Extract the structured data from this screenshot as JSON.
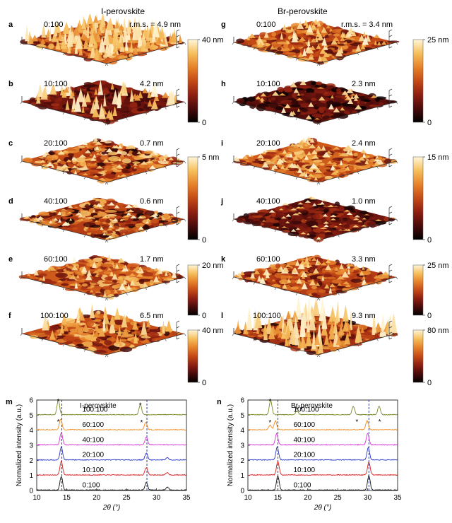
{
  "figure": {
    "columns": {
      "left_title": "I-perovskite",
      "right_title": "Br-perovskite"
    },
    "afm_panels": [
      {
        "letter": "a",
        "ratio": "0:100",
        "rms": "r.m.s. = 4.9 nm",
        "zmax": 40
      },
      {
        "letter": "b",
        "ratio": "10:100",
        "rms": "4.2 nm",
        "zmax": 40
      },
      {
        "letter": "c",
        "ratio": "20:100",
        "rms": "0.7 nm",
        "zmax": 5
      },
      {
        "letter": "d",
        "ratio": "40:100",
        "rms": "0.6 nm",
        "zmax": 5
      },
      {
        "letter": "e",
        "ratio": "60:100",
        "rms": "1.7 nm",
        "zmax": 20
      },
      {
        "letter": "f",
        "ratio": "100:100",
        "rms": "6.5 nm",
        "zmax": 40
      },
      {
        "letter": "g",
        "ratio": "0:100",
        "rms": "r.m.s. = 3.4 nm",
        "zmax": 25
      },
      {
        "letter": "h",
        "ratio": "10:100",
        "rms": "2.3 nm",
        "zmax": 25
      },
      {
        "letter": "i",
        "ratio": "20:100",
        "rms": "2.4 nm",
        "zmax": 15
      },
      {
        "letter": "j",
        "ratio": "40:100",
        "rms": "1.0 nm",
        "zmax": 15
      },
      {
        "letter": "k",
        "ratio": "60:100",
        "rms": "3.3 nm",
        "zmax": 25
      },
      {
        "letter": "l",
        "ratio": "100:100",
        "rms": "9.3 nm",
        "zmax": 80
      }
    ],
    "colorbars": [
      {
        "max_label": "40 nm",
        "min_label": "0"
      },
      {
        "max_label": "5 nm",
        "min_label": "0"
      },
      {
        "max_label": "20 nm",
        "min_label": "0"
      },
      {
        "max_label": "40 nm",
        "min_label": "0"
      },
      {
        "max_label": "25 nm",
        "min_label": "0"
      },
      {
        "max_label": "15 nm",
        "min_label": "0"
      },
      {
        "max_label": "25 nm",
        "min_label": "0"
      },
      {
        "max_label": "80 nm",
        "min_label": "0"
      }
    ],
    "colormap": [
      "#000000",
      "#4a0b0b",
      "#8e1f12",
      "#c44a16",
      "#e6822a",
      "#f6bf5c",
      "#fff6d8"
    ]
  },
  "chart_data": [
    {
      "type": "line",
      "panel": "m",
      "title": "I-perovskite",
      "xlabel": "2θ (°)",
      "ylabel": "Normalized intensity (a.u.)",
      "xlim": [
        10,
        35
      ],
      "ylim": [
        0,
        6
      ],
      "xticks": [
        "10",
        "15",
        "20",
        "25",
        "30",
        "35"
      ],
      "yticks": [
        "0",
        "1",
        "2",
        "3",
        "4",
        "5",
        "6"
      ],
      "dashed_lines_x": [
        14.2,
        28.4
      ],
      "series": [
        {
          "name": "0:100",
          "offset": 0,
          "color": "#111111",
          "peaks": [
            [
              14.1,
              0.9
            ],
            [
              28.3,
              0.5
            ],
            [
              31.8,
              0.2
            ]
          ]
        },
        {
          "name": "10:100",
          "offset": 1,
          "color": "#d42020",
          "peaks": [
            [
              14.1,
              0.9
            ],
            [
              28.3,
              0.5
            ],
            [
              31.8,
              0.15
            ]
          ]
        },
        {
          "name": "20:100",
          "offset": 2,
          "color": "#2a36c4",
          "peaks": [
            [
              14.1,
              0.85
            ],
            [
              28.3,
              0.45
            ],
            [
              31.8,
              0.15
            ]
          ]
        },
        {
          "name": "40:100",
          "offset": 3,
          "color": "#d632d6",
          "peaks": [
            [
              14.1,
              0.8
            ],
            [
              28.3,
              0.5
            ]
          ]
        },
        {
          "name": "60:100",
          "offset": 4,
          "color": "#f08a1c",
          "peaks": [
            [
              14.0,
              0.7
            ],
            [
              28.2,
              0.5
            ]
          ]
        },
        {
          "name": "100:100",
          "offset": 5,
          "color": "#7a8a2a",
          "peaks": [
            [
              13.6,
              0.95
            ],
            [
              27.3,
              0.65
            ]
          ]
        }
      ],
      "asterisks": [
        [
          13.6,
          5.95
        ],
        [
          27.3,
          5.7
        ],
        [
          13.6,
          4.6
        ],
        [
          27.5,
          4.55
        ]
      ]
    },
    {
      "type": "line",
      "panel": "n",
      "title": "Br-perovskite",
      "xlabel": "2θ (°)",
      "ylabel": "Normalized intensity (a.u.)",
      "xlim": [
        10,
        35
      ],
      "ylim": [
        0,
        6
      ],
      "xticks": [
        "10",
        "15",
        "20",
        "25",
        "30",
        "35"
      ],
      "yticks": [
        "0",
        "1",
        "2",
        "3",
        "4",
        "5",
        "6"
      ],
      "dashed_lines_x": [
        15.0,
        30.2
      ],
      "series": [
        {
          "name": "0:100",
          "offset": 0,
          "color": "#111111",
          "peaks": [
            [
              15.0,
              0.95
            ],
            [
              30.2,
              0.95
            ]
          ]
        },
        {
          "name": "10:100",
          "offset": 1,
          "color": "#d42020",
          "peaks": [
            [
              15.0,
              0.9
            ],
            [
              30.2,
              0.85
            ]
          ]
        },
        {
          "name": "20:100",
          "offset": 2,
          "color": "#2a36c4",
          "peaks": [
            [
              14.9,
              0.85
            ],
            [
              30.1,
              0.8
            ]
          ]
        },
        {
          "name": "40:100",
          "offset": 3,
          "color": "#d632d6",
          "peaks": [
            [
              14.8,
              0.75
            ],
            [
              30.0,
              0.75
            ]
          ]
        },
        {
          "name": "60:100",
          "offset": 4,
          "color": "#f08a1c",
          "peaks": [
            [
              14.6,
              0.6
            ],
            [
              29.9,
              0.6
            ],
            [
              13.7,
              0.3
            ]
          ]
        },
        {
          "name": "100:100",
          "offset": 5,
          "color": "#7a8a2a",
          "peaks": [
            [
              13.8,
              0.95
            ],
            [
              18.2,
              0.25
            ],
            [
              27.6,
              0.55
            ],
            [
              31.9,
              0.55
            ]
          ]
        }
      ],
      "asterisks": [
        [
          13.7,
          5.95
        ],
        [
          18.2,
          5.4
        ],
        [
          13.7,
          4.55
        ],
        [
          28.2,
          4.6
        ],
        [
          32.0,
          4.6
        ]
      ]
    }
  ]
}
